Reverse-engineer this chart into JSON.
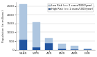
{
  "regions": [
    "SEAR",
    "WPR",
    "AFR",
    "EMR",
    "AMR",
    "EUR"
  ],
  "low_risk": [
    2000,
    1400,
    300,
    300,
    200,
    50
  ],
  "high_risk": [
    600,
    160,
    380,
    60,
    30,
    10
  ],
  "low_color": "#aec6e0",
  "high_color": "#2255a0",
  "ylabel": "Population (in millions)",
  "yticks": [
    0,
    500,
    1000,
    1500,
    2000,
    2500
  ],
  "ytick_labels": [
    "0",
    "500",
    "1000",
    "1500",
    "2000",
    "2500"
  ],
  "ylim": [
    0,
    2700
  ],
  "legend_low": "Low Risk (>= 2 cases/1000/year)",
  "legend_high": "High Risk (>= 1 cases/1000/year)",
  "background_color": "#ffffff",
  "bar_width": 0.6
}
